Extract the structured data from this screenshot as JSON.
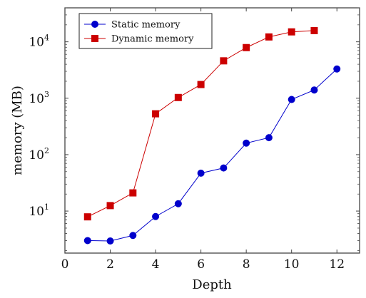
{
  "chart_data": {
    "type": "line",
    "title": "",
    "xlabel": "Depth",
    "ylabel": "memory (MB)",
    "xlim": [
      0,
      13
    ],
    "ylim": [
      1.8,
      40000
    ],
    "y_scale": "log",
    "x_ticks": [
      {
        "value": 0,
        "label": "0"
      },
      {
        "value": 2,
        "label": "2"
      },
      {
        "value": 4,
        "label": "4"
      },
      {
        "value": 6,
        "label": "6"
      },
      {
        "value": 8,
        "label": "8"
      },
      {
        "value": 10,
        "label": "10"
      },
      {
        "value": 12,
        "label": "12"
      }
    ],
    "y_ticks": [
      {
        "value": 10,
        "base": "10",
        "exp": "1"
      },
      {
        "value": 100,
        "base": "10",
        "exp": "2"
      },
      {
        "value": 1000,
        "base": "10",
        "exp": "3"
      },
      {
        "value": 10000,
        "base": "10",
        "exp": "4"
      }
    ],
    "grid": false,
    "legend_position": "top-left",
    "series": [
      {
        "name": "Static memory",
        "color": "#0000cc",
        "marker": "circle",
        "x": [
          1,
          2,
          3,
          4,
          5,
          6,
          7,
          8,
          9,
          10,
          11,
          12
        ],
        "y": [
          3.0,
          2.95,
          3.7,
          8.0,
          13.5,
          47,
          58,
          160,
          200,
          950,
          1400,
          3300
        ]
      },
      {
        "name": "Dynamic memory",
        "color": "#cc0000",
        "marker": "square",
        "x": [
          1,
          2,
          3,
          4,
          5,
          6,
          7,
          8,
          9,
          10,
          11
        ],
        "y": [
          7.9,
          12.5,
          21,
          530,
          1030,
          1750,
          4600,
          7900,
          12200,
          15000,
          15800
        ]
      }
    ]
  }
}
